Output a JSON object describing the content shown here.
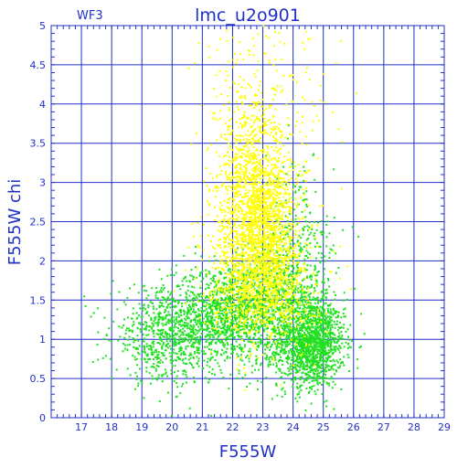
{
  "chart_data": {
    "type": "scatter",
    "title": "lmc_u2o901",
    "corner_label": "WF3",
    "xlabel": "F555W",
    "ylabel": "F555W  chi",
    "xlim": [
      16,
      29
    ],
    "ylim": [
      0,
      5
    ],
    "x_ticks": [
      17,
      18,
      19,
      20,
      21,
      22,
      23,
      24,
      25,
      26,
      27,
      28,
      29
    ],
    "y_ticks": [
      0,
      0.5,
      1,
      1.5,
      2,
      2.5,
      3,
      3.5,
      4,
      4.5,
      5
    ],
    "x_tick_labels": [
      "17",
      "18",
      "19",
      "20",
      "21",
      "22",
      "23",
      "24",
      "25",
      "26",
      "27",
      "28",
      "29"
    ],
    "y_tick_labels": [
      "0",
      "0.5",
      "1",
      "1.5",
      "2",
      "2.5",
      "3",
      "3.5",
      "4",
      "4.5",
      "5"
    ],
    "grid": true,
    "series": [
      {
        "color": "#22e022",
        "clusters": [
          {
            "cx": 24.6,
            "cy": 0.95,
            "sx": 0.55,
            "sy": 0.28,
            "n": 1400
          },
          {
            "cx": 21.8,
            "cy": 1.3,
            "sx": 0.9,
            "sy": 0.32,
            "n": 1100
          },
          {
            "cx": 19.8,
            "cy": 1.05,
            "sx": 0.9,
            "sy": 0.3,
            "n": 700
          },
          {
            "cx": 23.6,
            "cy": 1.5,
            "sx": 0.8,
            "sy": 0.4,
            "n": 700
          },
          {
            "cx": 24.2,
            "cy": 2.1,
            "sx": 0.6,
            "sy": 0.6,
            "n": 250
          }
        ]
      },
      {
        "color": "#ffff00",
        "clusters": [
          {
            "cx": 22.9,
            "cy": 2.3,
            "sx": 0.7,
            "sy": 0.55,
            "n": 1800
          },
          {
            "cx": 22.7,
            "cy": 3.2,
            "sx": 0.55,
            "sy": 0.55,
            "n": 600
          },
          {
            "cx": 23.2,
            "cy": 4.0,
            "sx": 1.2,
            "sy": 0.6,
            "n": 160
          },
          {
            "cx": 23.0,
            "cy": 1.6,
            "sx": 0.9,
            "sy": 0.3,
            "n": 500
          }
        ]
      }
    ]
  }
}
